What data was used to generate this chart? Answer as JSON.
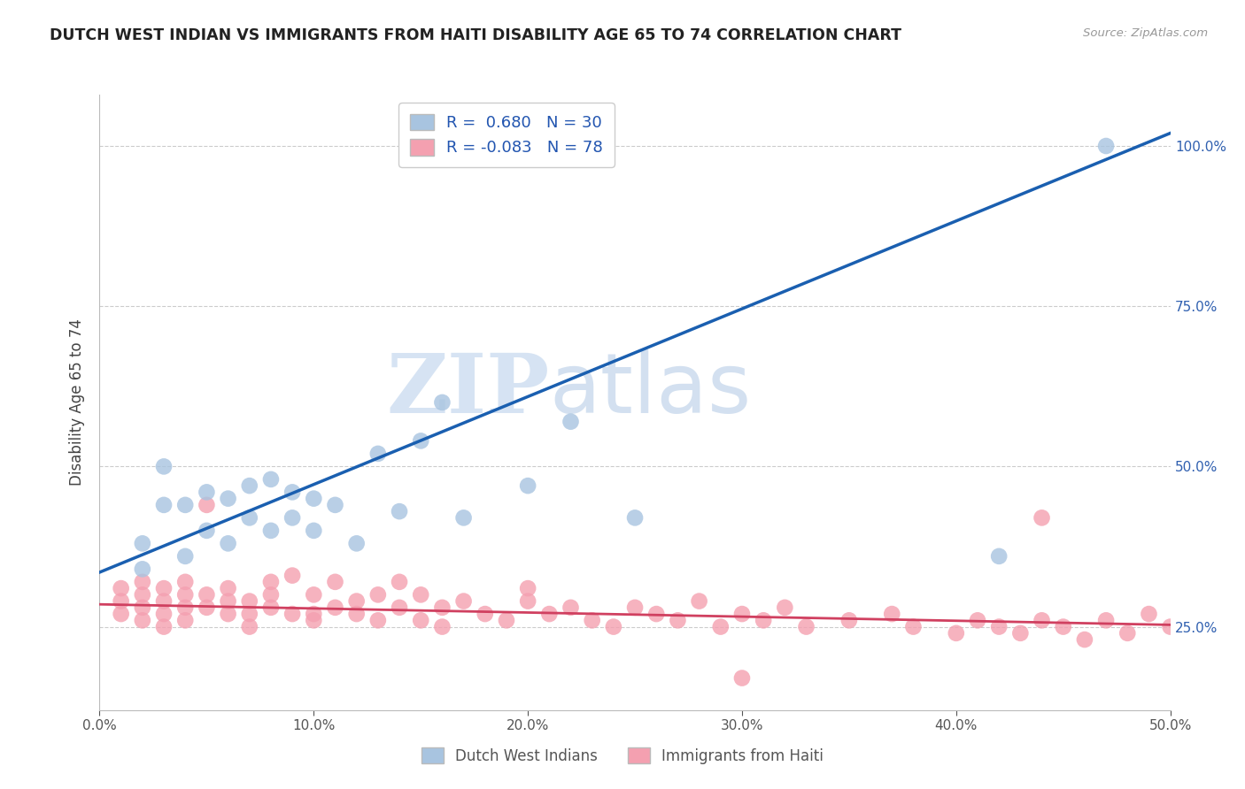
{
  "title": "DUTCH WEST INDIAN VS IMMIGRANTS FROM HAITI DISABILITY AGE 65 TO 74 CORRELATION CHART",
  "source": "Source: ZipAtlas.com",
  "ylabel": "Disability Age 65 to 74",
  "xlabel": "",
  "xlim": [
    0.0,
    0.5
  ],
  "ylim": [
    0.12,
    1.08
  ],
  "xticks": [
    0.0,
    0.1,
    0.2,
    0.3,
    0.4,
    0.5
  ],
  "xticklabels": [
    "0.0%",
    "10.0%",
    "20.0%",
    "30.0%",
    "40.0%",
    "50.0%"
  ],
  "yticks_right": [
    0.25,
    0.5,
    0.75,
    1.0
  ],
  "yticklabels_right": [
    "25.0%",
    "50.0%",
    "75.0%",
    "100.0%"
  ],
  "blue_R": 0.68,
  "blue_N": 30,
  "pink_R": -0.083,
  "pink_N": 78,
  "blue_color": "#a8c4e0",
  "blue_line_color": "#1a5fb0",
  "pink_color": "#f4a0b0",
  "pink_line_color": "#d04060",
  "watermark_zip": "ZIP",
  "watermark_atlas": "atlas",
  "legend_label_blue": "Dutch West Indians",
  "legend_label_pink": "Immigrants from Haiti",
  "blue_scatter_x": [
    0.02,
    0.02,
    0.03,
    0.03,
    0.04,
    0.04,
    0.05,
    0.05,
    0.06,
    0.06,
    0.07,
    0.07,
    0.08,
    0.08,
    0.09,
    0.09,
    0.1,
    0.1,
    0.11,
    0.13,
    0.14,
    0.16,
    0.2,
    0.22,
    0.12,
    0.15,
    0.17,
    0.25,
    0.42,
    0.47
  ],
  "blue_scatter_y": [
    0.34,
    0.38,
    0.44,
    0.5,
    0.36,
    0.44,
    0.4,
    0.46,
    0.38,
    0.45,
    0.42,
    0.47,
    0.4,
    0.48,
    0.42,
    0.46,
    0.4,
    0.45,
    0.44,
    0.52,
    0.43,
    0.6,
    0.47,
    0.57,
    0.38,
    0.54,
    0.42,
    0.42,
    0.36,
    1.0
  ],
  "pink_scatter_x": [
    0.01,
    0.01,
    0.01,
    0.02,
    0.02,
    0.02,
    0.02,
    0.03,
    0.03,
    0.03,
    0.03,
    0.04,
    0.04,
    0.04,
    0.04,
    0.05,
    0.05,
    0.05,
    0.06,
    0.06,
    0.06,
    0.07,
    0.07,
    0.07,
    0.08,
    0.08,
    0.08,
    0.09,
    0.09,
    0.1,
    0.1,
    0.1,
    0.11,
    0.11,
    0.12,
    0.12,
    0.13,
    0.13,
    0.14,
    0.14,
    0.15,
    0.15,
    0.16,
    0.16,
    0.17,
    0.18,
    0.19,
    0.2,
    0.2,
    0.21,
    0.22,
    0.23,
    0.24,
    0.25,
    0.26,
    0.27,
    0.28,
    0.29,
    0.3,
    0.31,
    0.32,
    0.33,
    0.35,
    0.37,
    0.38,
    0.4,
    0.41,
    0.42,
    0.43,
    0.44,
    0.45,
    0.46,
    0.47,
    0.48,
    0.49,
    0.5,
    0.44,
    0.3
  ],
  "pink_scatter_y": [
    0.27,
    0.29,
    0.31,
    0.26,
    0.28,
    0.3,
    0.32,
    0.27,
    0.29,
    0.31,
    0.25,
    0.28,
    0.3,
    0.32,
    0.26,
    0.28,
    0.3,
    0.44,
    0.27,
    0.29,
    0.31,
    0.27,
    0.29,
    0.25,
    0.28,
    0.3,
    0.32,
    0.27,
    0.33,
    0.27,
    0.26,
    0.3,
    0.28,
    0.32,
    0.27,
    0.29,
    0.26,
    0.3,
    0.28,
    0.32,
    0.26,
    0.3,
    0.28,
    0.25,
    0.29,
    0.27,
    0.26,
    0.29,
    0.31,
    0.27,
    0.28,
    0.26,
    0.25,
    0.28,
    0.27,
    0.26,
    0.29,
    0.25,
    0.27,
    0.26,
    0.28,
    0.25,
    0.26,
    0.27,
    0.25,
    0.24,
    0.26,
    0.25,
    0.24,
    0.26,
    0.25,
    0.23,
    0.26,
    0.24,
    0.27,
    0.25,
    0.42,
    0.17
  ],
  "blue_trend_x0": 0.0,
  "blue_trend_y0": 0.335,
  "blue_trend_x1": 0.5,
  "blue_trend_y1": 1.02,
  "pink_trend_x0": 0.0,
  "pink_trend_y0": 0.285,
  "pink_trend_x1": 0.5,
  "pink_trend_y1": 0.253,
  "grid_color": "#cccccc",
  "bg_color": "#ffffff",
  "title_color": "#222222",
  "axis_label_color": "#444444",
  "tick_label_color": "#555555"
}
